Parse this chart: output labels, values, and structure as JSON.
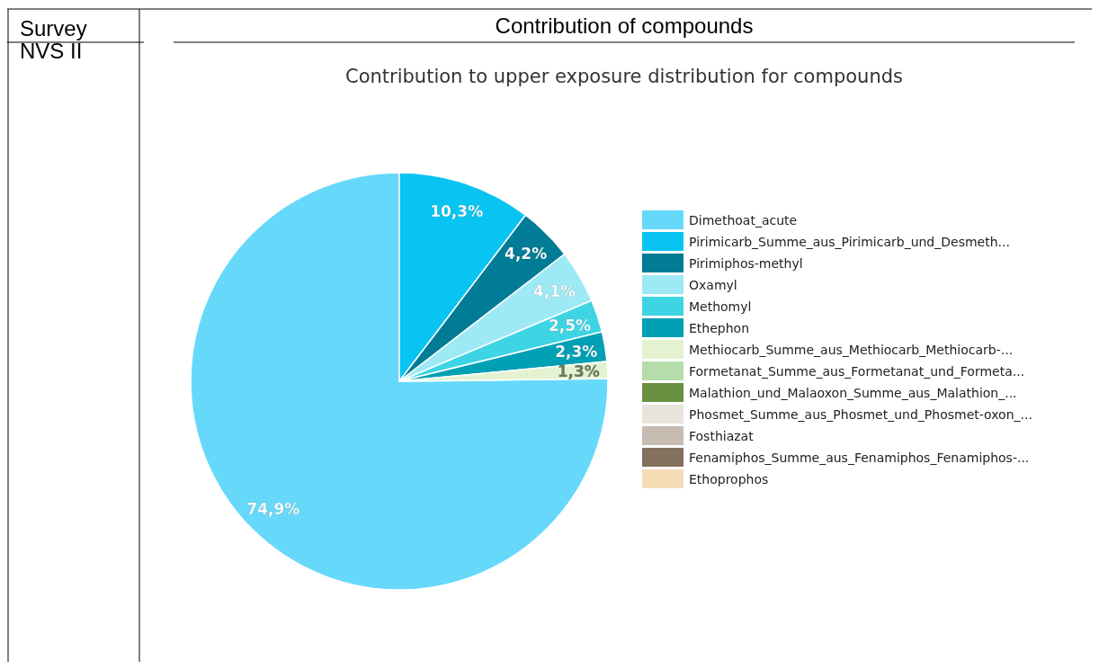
{
  "chart_data": {
    "type": "pie",
    "title": "Contribution to upper exposure distribution for compounds",
    "annotations": [
      "Survey",
      "Contribution of compounds",
      "NVS II"
    ],
    "categories": [
      "Dimethoat_acute",
      "Pirimicarb_Summe_aus_Pirimicarb_und_Desmeth...",
      "Pirimiphos-methyl",
      "Oxamyl",
      "Methomyl",
      "Ethephon",
      "Methiocarb_Summe_aus_Methiocarb_Methiocarb-...",
      "Formetanat_Summe_aus_Formetanat_und_Formeta...",
      "Malathion_und_Malaoxon_Summe_aus_Malathion_...",
      "Phosmet_Summe_aus_Phosmet_und_Phosmet-oxon_...",
      "Fosthiazat",
      "Fenamiphos_Summe_aus_Fenamiphos_Fenamiphos-...",
      "Ethoprophos"
    ],
    "values": [
      74.9,
      10.3,
      4.2,
      4.1,
      2.5,
      2.3,
      1.3,
      null,
      null,
      null,
      null,
      null,
      null
    ],
    "value_labels": [
      "74,9%",
      "10,3%",
      "4,2%",
      "4,1%",
      "2,5%",
      "2,3%",
      "1,3%",
      null,
      null,
      null,
      null,
      null,
      null
    ],
    "colors": [
      "#66d9fa",
      "#08c4f2",
      "#007c96",
      "#9de9f5",
      "#3dd5e3",
      "#00a0b4",
      "#e4f2d2",
      "#b5ddaa",
      "#6a9042",
      "#e7e4dc",
      "#c6bbb0",
      "#84705e",
      "#f5dcb6"
    ],
    "legend": "right"
  }
}
